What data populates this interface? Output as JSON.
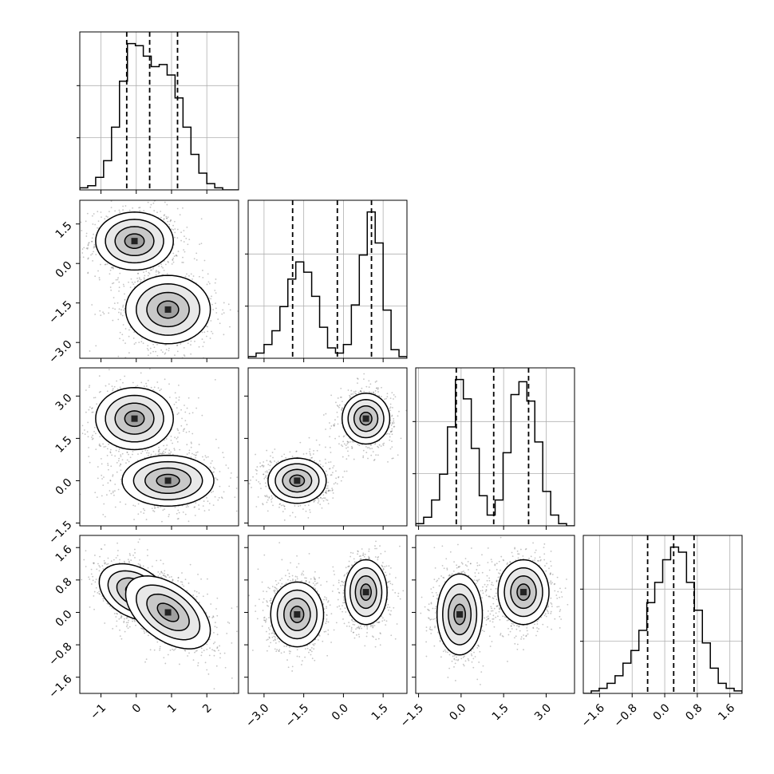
{
  "chart_data": {
    "type": "corner",
    "n_params": 4,
    "axes": [
      {
        "lim": [
          -1.6,
          2.9
        ],
        "ticks": [
          -1,
          0,
          1,
          2
        ],
        "tick_labels": [
          "−1",
          "0",
          "1",
          "2"
        ]
      },
      {
        "lim": [
          -3.6,
          2.4
        ],
        "ticks": [
          -3.0,
          -1.5,
          0.0,
          1.5
        ],
        "tick_labels": [
          "−3.0",
          "−1.5",
          "0.0",
          "1.5"
        ]
      },
      {
        "lim": [
          -1.6,
          4.0
        ],
        "ticks": [
          -1.5,
          0.0,
          1.5,
          3.0
        ],
        "tick_labels": [
          "−1.5",
          "0.0",
          "1.5",
          "3.0"
        ]
      },
      {
        "lim": [
          -2.0,
          1.9
        ],
        "ticks": [
          -1.6,
          -0.8,
          0.0,
          0.8,
          1.6
        ],
        "tick_labels": [
          "−1.6",
          "−0.8",
          "0.0",
          "0.8",
          "1.6"
        ]
      }
    ],
    "histograms": [
      {
        "counts": [
          1,
          2,
          6,
          14,
          30,
          52,
          70,
          69,
          64,
          59,
          60,
          55,
          44,
          30,
          17,
          8,
          3,
          1,
          0,
          0
        ],
        "quantiles": [
          -0.27,
          0.38,
          1.17
        ]
      },
      {
        "counts": [
          1,
          3,
          8,
          16,
          30,
          46,
          56,
          50,
          36,
          18,
          6,
          3,
          8,
          31,
          60,
          85,
          67,
          28,
          5,
          1
        ],
        "quantiles": [
          -1.92,
          -0.23,
          1.06
        ]
      },
      {
        "counts": [
          1,
          4,
          12,
          24,
          46,
          68,
          59,
          36,
          14,
          5,
          12,
          34,
          61,
          67,
          58,
          39,
          16,
          5,
          1,
          0
        ],
        "quantiles": [
          -0.17,
          1.15,
          2.38
        ]
      },
      {
        "counts": [
          0,
          1,
          2,
          4,
          7,
          12,
          17,
          25,
          36,
          44,
          53,
          58,
          56,
          44,
          33,
          20,
          10,
          4,
          2,
          1
        ],
        "quantiles": [
          -0.42,
          0.22,
          0.72
        ]
      }
    ],
    "pair_components": [
      {
        "x": 0,
        "y": 1,
        "blobs": [
          {
            "mx": -0.05,
            "my": 0.85,
            "sx": 0.55,
            "sy": 0.55,
            "r": 0.0
          },
          {
            "mx": 0.9,
            "my": -1.75,
            "sx": 0.6,
            "sy": 0.65,
            "r": 0.0
          }
        ]
      },
      {
        "x": 0,
        "y": 2,
        "blobs": [
          {
            "mx": -0.05,
            "my": 2.2,
            "sx": 0.55,
            "sy": 0.55,
            "r": 0.0
          },
          {
            "mx": 0.9,
            "my": 0.0,
            "sx": 0.65,
            "sy": 0.45,
            "r": 0.0
          }
        ]
      },
      {
        "x": 1,
        "y": 2,
        "blobs": [
          {
            "mx": 0.85,
            "my": 2.2,
            "sx": 0.45,
            "sy": 0.45,
            "r": 0.0
          },
          {
            "mx": -1.75,
            "my": 0.0,
            "sx": 0.55,
            "sy": 0.4,
            "r": 0.0
          }
        ]
      },
      {
        "x": 0,
        "y": 3,
        "blobs": [
          {
            "mx": -0.05,
            "my": 0.5,
            "sx": 0.5,
            "sy": 0.35,
            "r": -0.35
          },
          {
            "mx": 0.9,
            "my": 0.0,
            "sx": 0.6,
            "sy": 0.45,
            "r": -0.5
          }
        ]
      },
      {
        "x": 1,
        "y": 3,
        "blobs": [
          {
            "mx": 0.85,
            "my": 0.5,
            "sx": 0.4,
            "sy": 0.4,
            "r": 0.0
          },
          {
            "mx": -1.75,
            "my": -0.05,
            "sx": 0.5,
            "sy": 0.4,
            "r": 0.0
          }
        ]
      },
      {
        "x": 2,
        "y": 3,
        "blobs": [
          {
            "mx": 2.2,
            "my": 0.5,
            "sx": 0.45,
            "sy": 0.4,
            "r": 0.0
          },
          {
            "mx": -0.05,
            "my": -0.05,
            "sx": 0.4,
            "sy": 0.5,
            "r": 0.0
          }
        ]
      }
    ],
    "contour_levels_sigma": [
      0.5,
      1.0,
      1.5,
      2.0
    ],
    "colors": {
      "line": "#000000",
      "grid": "#b0b0b0",
      "points": "#555555",
      "quantile": "#000000"
    }
  }
}
